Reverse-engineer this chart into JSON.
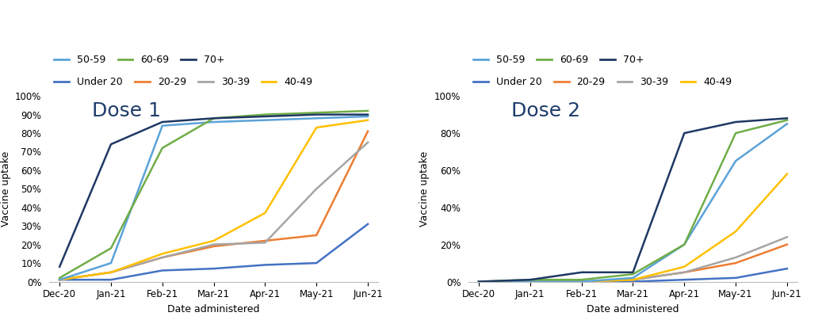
{
  "x_labels": [
    "Dec-20",
    "Jan-21",
    "Feb-21",
    "Mar-21",
    "Apr-21",
    "May-21",
    "Jun-21"
  ],
  "age_groups": [
    "Under 20",
    "20-29",
    "30-39",
    "40-49",
    "50-59",
    "60-69",
    "70+"
  ],
  "colors": [
    "#4472C4",
    "#ED7D31",
    "#A5A5A5",
    "#FFC000",
    "#5BA3D9",
    "#70AD47",
    "#1F3864"
  ],
  "dose1": {
    "Under 20": [
      0.01,
      0.01,
      0.06,
      0.07,
      0.09,
      0.1,
      0.31
    ],
    "20-29": [
      0.01,
      0.05,
      0.13,
      0.19,
      0.22,
      0.25,
      0.81
    ],
    "30-39": [
      0.01,
      0.05,
      0.13,
      0.2,
      0.21,
      0.5,
      0.75
    ],
    "40-49": [
      0.01,
      0.05,
      0.15,
      0.22,
      0.37,
      0.83,
      0.87
    ],
    "50-59": [
      0.01,
      0.1,
      0.84,
      0.86,
      0.87,
      0.88,
      0.89
    ],
    "60-69": [
      0.02,
      0.18,
      0.72,
      0.88,
      0.9,
      0.91,
      0.92
    ],
    "70+": [
      0.08,
      0.74,
      0.86,
      0.88,
      0.89,
      0.9,
      0.9
    ]
  },
  "dose2": {
    "Under 20": [
      0.0,
      0.0,
      0.0,
      0.0,
      0.01,
      0.02,
      0.07
    ],
    "20-29": [
      0.0,
      0.0,
      0.0,
      0.01,
      0.05,
      0.1,
      0.2
    ],
    "30-39": [
      0.0,
      0.0,
      0.0,
      0.01,
      0.05,
      0.13,
      0.24
    ],
    "40-49": [
      0.0,
      0.0,
      0.0,
      0.01,
      0.08,
      0.27,
      0.58
    ],
    "50-59": [
      0.0,
      0.0,
      0.0,
      0.02,
      0.2,
      0.65,
      0.85
    ],
    "60-69": [
      0.0,
      0.01,
      0.01,
      0.04,
      0.2,
      0.8,
      0.87
    ],
    "70+": [
      0.0,
      0.01,
      0.05,
      0.05,
      0.8,
      0.86,
      0.88
    ]
  },
  "ylabel": "Vaccine uptake",
  "xlabel": "Date administered",
  "title1": "Dose 1",
  "title2": "Dose 2",
  "title_fontsize": 18,
  "legend_fontsize": 9,
  "axis_fontsize": 9,
  "tick_fontsize": 8.5
}
